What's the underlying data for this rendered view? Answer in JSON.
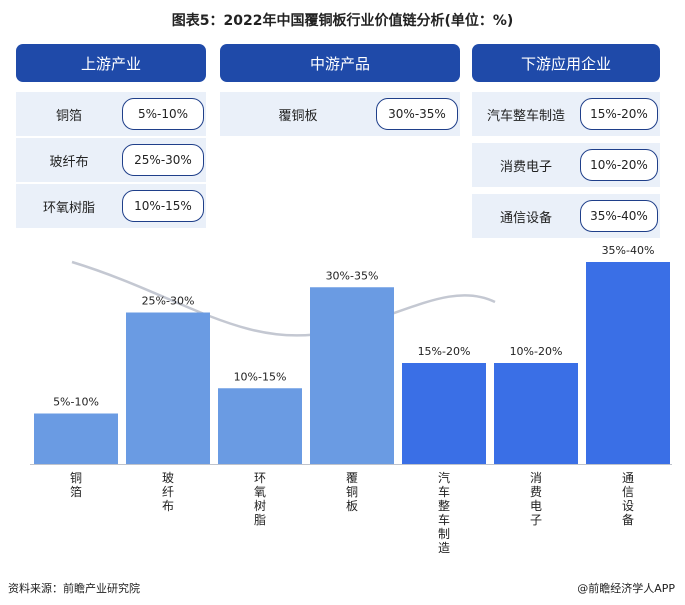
{
  "title": "图表5：2022年中国覆铜板行业价值链分析(单位：%)",
  "sections": {
    "upstream": {
      "label": "上游产业",
      "items": [
        {
          "name": "铜箔",
          "range": "5%-10%"
        },
        {
          "name": "玻纤布",
          "range": "25%-30%"
        },
        {
          "name": "环氧树脂",
          "range": "10%-15%"
        }
      ]
    },
    "midstream": {
      "label": "中游产品",
      "items": [
        {
          "name": "覆铜板",
          "range": "30%-35%"
        }
      ]
    },
    "downstream": {
      "label": "下游应用企业",
      "items": [
        {
          "name": "汽车整车制造",
          "range": "15%-20%"
        },
        {
          "name": "消费电子",
          "range": "10%-20%"
        },
        {
          "name": "通信设备",
          "range": "35%-40%"
        }
      ]
    }
  },
  "chart_data": {
    "type": "bar",
    "categories": [
      "铜箔",
      "玻纤布",
      "环氧树脂",
      "覆铜板",
      "汽车整车制造",
      "消费电子",
      "通信设备"
    ],
    "values": [
      10,
      30,
      15,
      35,
      20,
      20,
      40
    ],
    "labels": [
      "5%-10%",
      "25%-30%",
      "10%-15%",
      "30%-35%",
      "15%-20%",
      "10%-20%",
      "35%-40%"
    ],
    "ylim": [
      0,
      40
    ],
    "colors": [
      "#6a9be3",
      "#6a9be3",
      "#6a9be3",
      "#6a9be3",
      "#3a6fe6",
      "#3a6fe6",
      "#3a6fe6"
    ],
    "trend_color": "#c4c8d2"
  },
  "footer": {
    "source": "资料来源：前瞻产业研究院",
    "brand": "@前瞻经济学人APP"
  }
}
